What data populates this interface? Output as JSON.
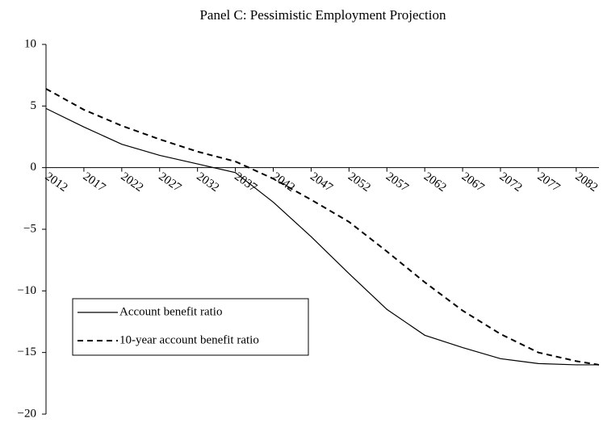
{
  "chart_data": {
    "type": "line",
    "title": "Panel C: Pessimistic Employment Projection",
    "x": [
      2012,
      2017,
      2022,
      2027,
      2032,
      2037,
      2042,
      2047,
      2052,
      2057,
      2062,
      2067,
      2072,
      2077,
      2082,
      2085
    ],
    "series": [
      {
        "name": "Account benefit ratio",
        "color": "#000000",
        "dash": "solid",
        "values": [
          4.8,
          3.3,
          1.9,
          1.0,
          0.3,
          -0.4,
          -2.8,
          -5.6,
          -8.6,
          -11.5,
          -13.6,
          -14.6,
          -15.5,
          -15.9,
          -16.0,
          -16.0
        ]
      },
      {
        "name": "10-year account benefit ratio",
        "color": "#000000",
        "dash": "dashed",
        "values": [
          6.4,
          4.7,
          3.4,
          2.3,
          1.3,
          0.5,
          -0.9,
          -2.6,
          -4.4,
          -6.8,
          -9.3,
          -11.6,
          -13.5,
          -15.0,
          -15.7,
          -16.0
        ]
      }
    ],
    "xlim": [
      2012,
      2085
    ],
    "xticks": [
      2012,
      2017,
      2022,
      2027,
      2032,
      2037,
      2042,
      2047,
      2052,
      2057,
      2062,
      2067,
      2072,
      2077,
      2082
    ],
    "ylim": [
      -20,
      10
    ],
    "yticks": [
      {
        "value": -20,
        "label": "−20"
      },
      {
        "value": -15,
        "label": "−15"
      },
      {
        "value": -10,
        "label": "−10"
      },
      {
        "value": -5,
        "label": "−5"
      },
      0,
      5,
      10
    ],
    "legend": "lower left"
  }
}
